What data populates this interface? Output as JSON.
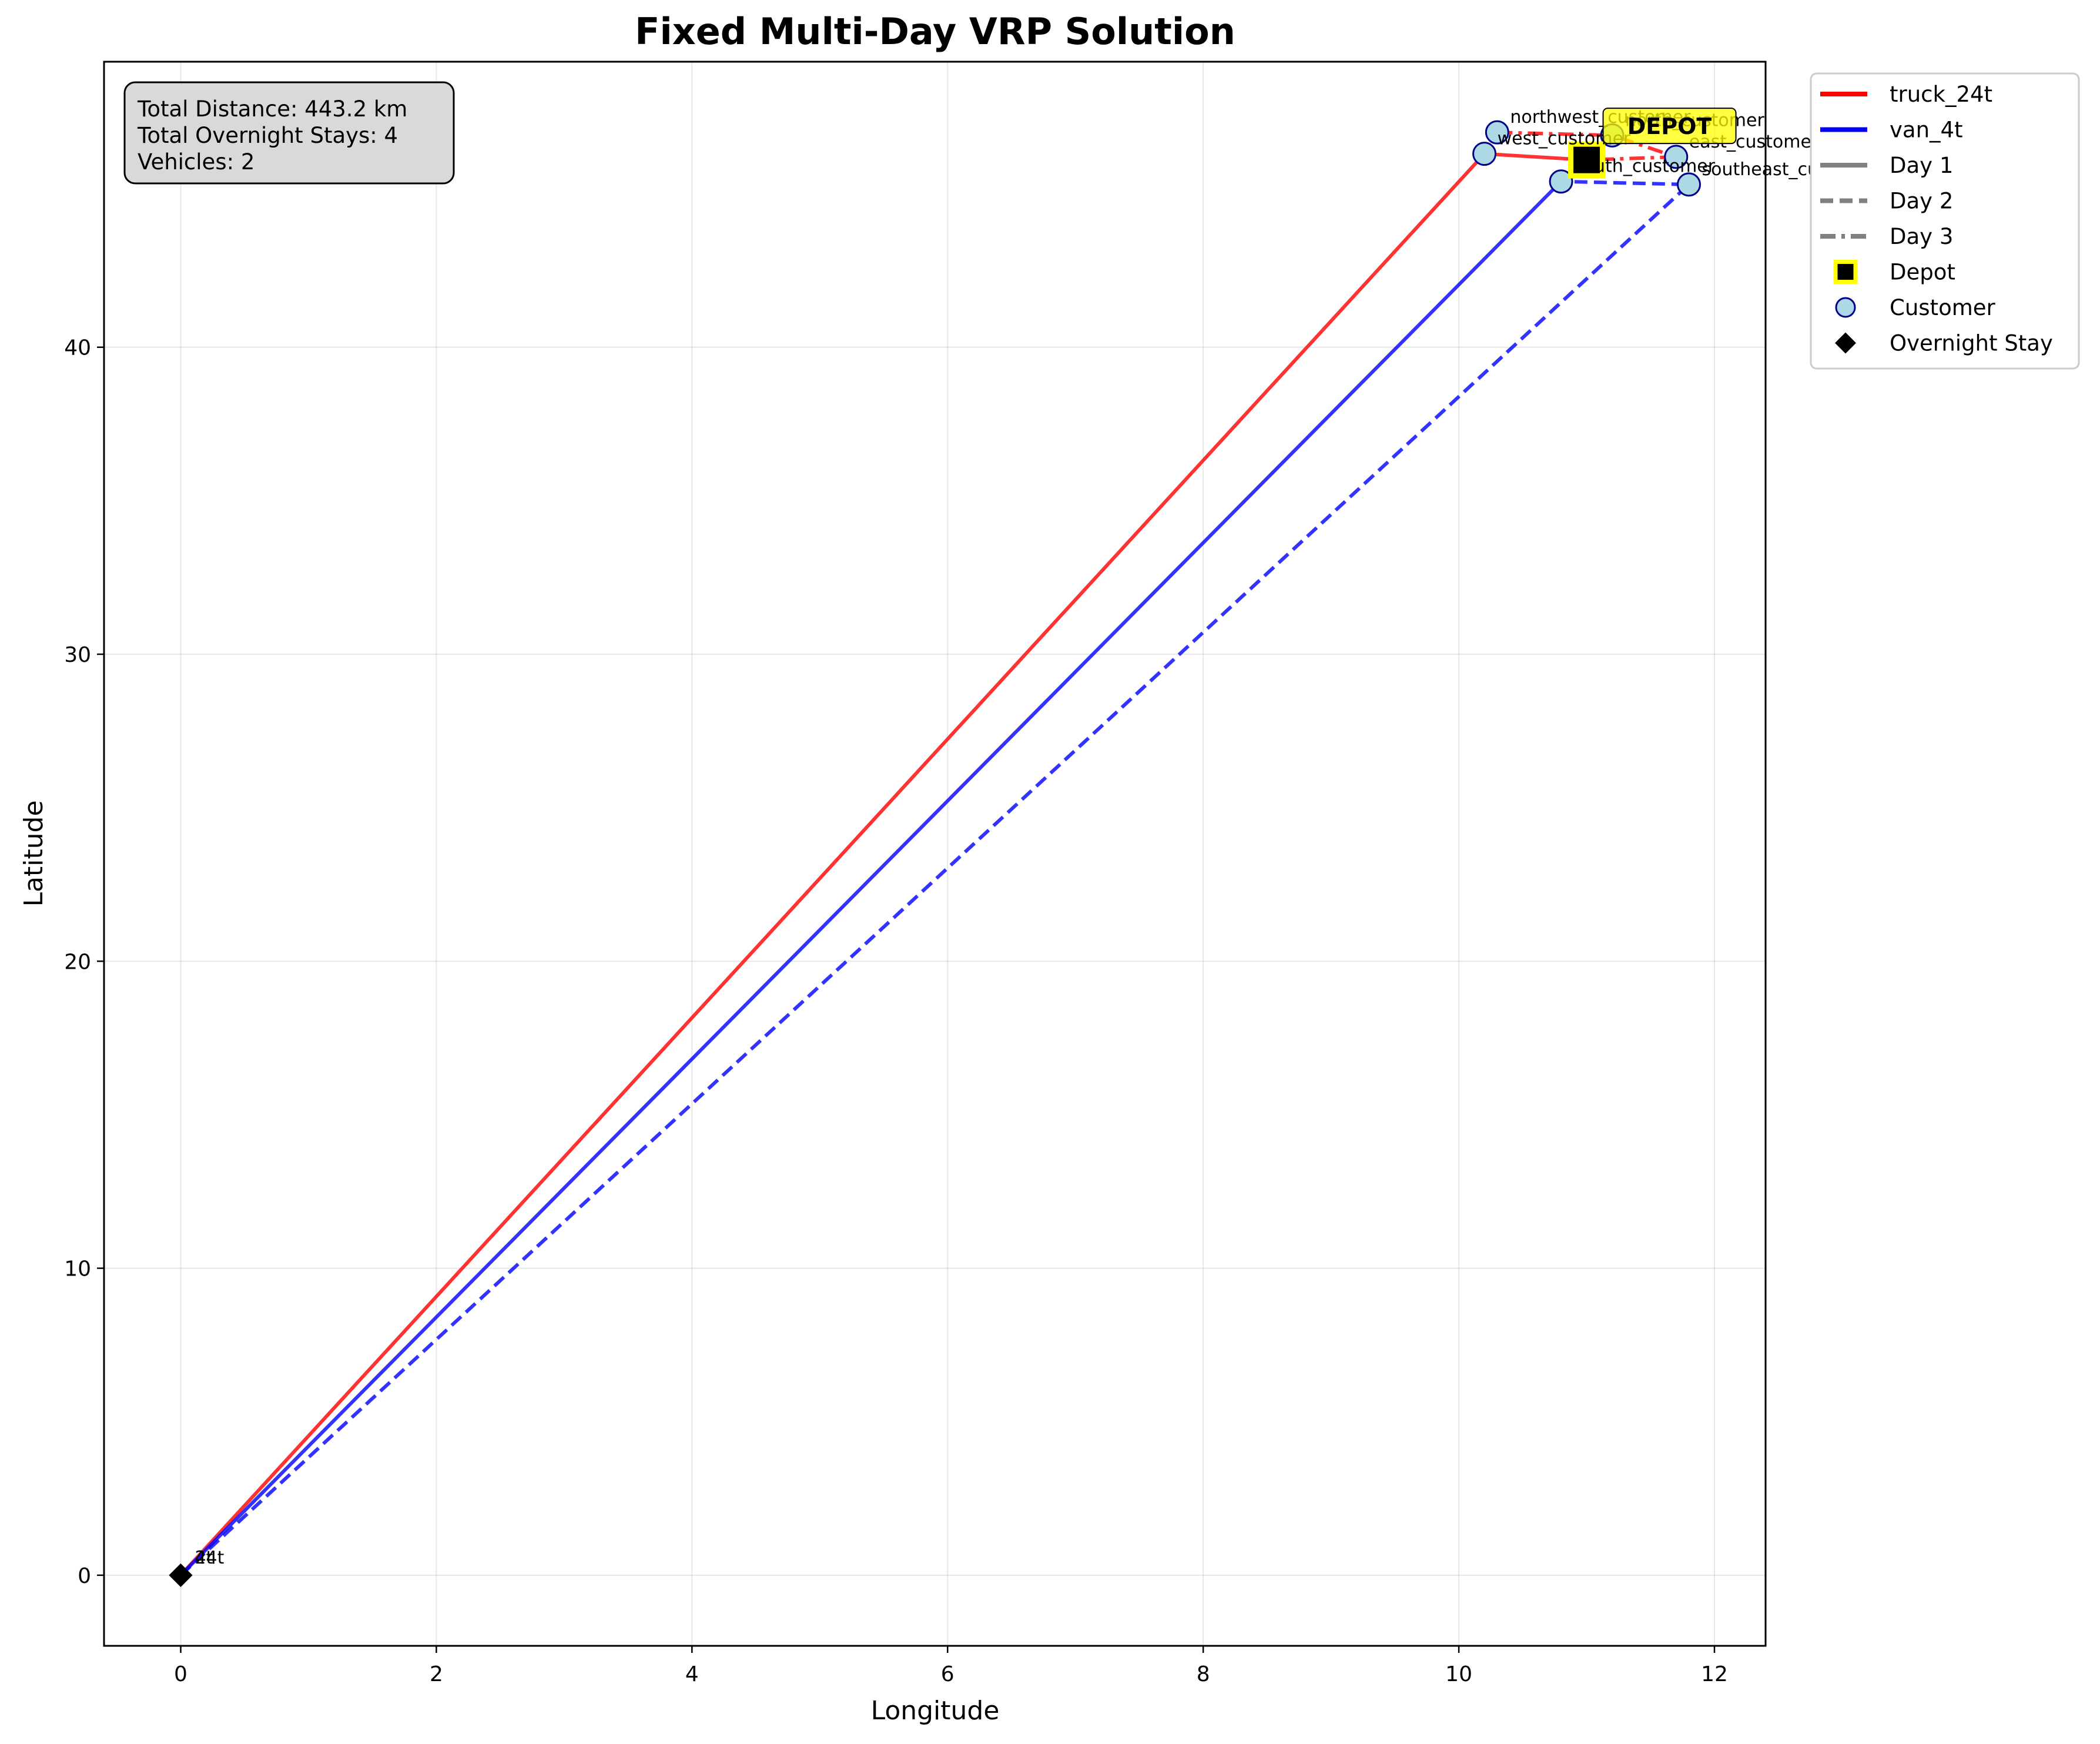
{
  "chart_data": {
    "type": "line",
    "title": "Fixed Multi-Day VRP Solution",
    "xlabel": "Longitude",
    "ylabel": "Latitude",
    "xlim": [
      -0.6,
      12.4
    ],
    "ylim": [
      -2.3,
      49.3
    ],
    "xticks": [
      0,
      2,
      4,
      6,
      8,
      10,
      12
    ],
    "yticks": [
      0,
      10,
      20,
      30,
      40
    ],
    "grid": true,
    "legend_position": "outside-top-right",
    "info_box": [
      "Total Distance: 443.2 km",
      "Total Overnight Stays: 4",
      "Vehicles: 2"
    ],
    "colors": {
      "truck_24t": "#ff0000",
      "van_4t": "#0000ff",
      "depot_edge": "#ffff00",
      "customer_fill": "#add8e6",
      "customer_edge": "#00008b",
      "overnight": "#000000"
    },
    "depot": {
      "name": "DEPOT",
      "x": 11.0,
      "y": 46.1
    },
    "customers": [
      {
        "name": "northwest_customer",
        "x": 10.3,
        "y": 47.0
      },
      {
        "name": "north_customer",
        "x": 11.2,
        "y": 46.9
      },
      {
        "name": "west_customer",
        "x": 10.2,
        "y": 46.3
      },
      {
        "name": "east_customer",
        "x": 11.7,
        "y": 46.2
      },
      {
        "name": "south_customer",
        "x": 10.8,
        "y": 45.4
      },
      {
        "name": "southeast_customer",
        "x": 11.8,
        "y": 45.3
      }
    ],
    "overnight_stays": [
      {
        "label": "24t",
        "x": 0.0,
        "y": 0.0
      },
      {
        "label": "4t",
        "x": 0.0,
        "y": 0.0
      }
    ],
    "series": [
      {
        "name": "truck_24t",
        "day": 1,
        "dash": "solid",
        "x": [
          11.0,
          10.2,
          0.0
        ],
        "y": [
          46.1,
          46.3,
          0.0
        ]
      },
      {
        "name": "truck_24t",
        "day": 3,
        "dash": "dashdot",
        "x": [
          10.3,
          11.2,
          11.7,
          11.0
        ],
        "y": [
          47.0,
          46.9,
          46.2,
          46.1
        ]
      },
      {
        "name": "van_4t",
        "day": 1,
        "dash": "solid",
        "x": [
          11.0,
          10.8,
          0.0
        ],
        "y": [
          46.1,
          45.4,
          0.0
        ]
      },
      {
        "name": "van_4t",
        "day": 2,
        "dash": "dashed",
        "x": [
          0.0,
          11.8,
          10.8,
          11.0
        ],
        "y": [
          0.0,
          45.3,
          45.4,
          46.1
        ]
      }
    ],
    "legend": [
      {
        "label": "truck_24t",
        "kind": "line",
        "color": "#ff0000",
        "dash": "solid"
      },
      {
        "label": "van_4t",
        "kind": "line",
        "color": "#0000ff",
        "dash": "solid"
      },
      {
        "label": "Day 1",
        "kind": "line",
        "color": "#808080",
        "dash": "solid"
      },
      {
        "label": "Day 2",
        "kind": "line",
        "color": "#808080",
        "dash": "dashed"
      },
      {
        "label": "Day 3",
        "kind": "line",
        "color": "#808080",
        "dash": "dashdot"
      },
      {
        "label": "Depot",
        "kind": "square"
      },
      {
        "label": "Customer",
        "kind": "circle"
      },
      {
        "label": "Overnight Stay",
        "kind": "diamond"
      }
    ]
  }
}
